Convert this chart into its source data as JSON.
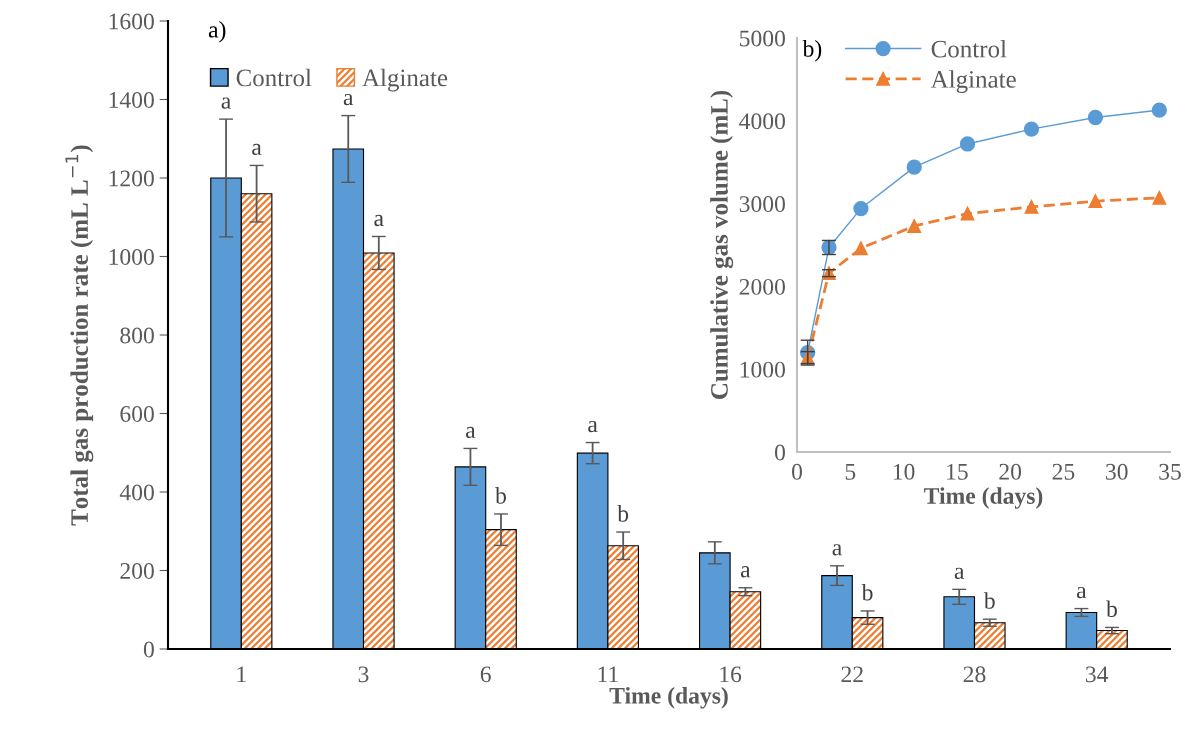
{
  "chart_data": [
    {
      "type": "bar",
      "title": "a)",
      "xlabel": "Time (days)",
      "ylabel": "Total gas production rate (mL L$^{−1}$)",
      "categories": [
        "1",
        "3",
        "6",
        "11",
        "16",
        "22",
        "28",
        "34"
      ],
      "ylim": [
        0,
        1600
      ],
      "yticks": [
        0,
        200,
        400,
        600,
        800,
        1000,
        1200,
        1400,
        1600
      ],
      "grid": false,
      "legend": "top left",
      "series": [
        {
          "name": "Control",
          "color": "#5b9bd5",
          "values": [
            1200,
            1274,
            464,
            499,
            245,
            187,
            133,
            93
          ],
          "errors": [
            150,
            85,
            47,
            27,
            28,
            25,
            19,
            10
          ]
        },
        {
          "name": "Alginate",
          "color": "#ed7d31",
          "values": [
            1160,
            1009,
            304,
            263,
            146,
            80,
            67,
            47
          ],
          "errors": [
            72,
            42,
            40,
            35,
            10,
            17,
            9,
            8
          ]
        }
      ],
      "annotations": [
        {
          "text": "a",
          "x": "1",
          "y": 1200
        },
        {
          "text": "a",
          "x": "1",
          "y": 1160
        },
        {
          "text": "a",
          "x": "3",
          "y": 1274
        },
        {
          "text": "a",
          "x": "3",
          "y": 1009
        },
        {
          "text": "a",
          "x": "6",
          "y": 464
        },
        {
          "text": "b",
          "x": "6",
          "y": 304
        },
        {
          "text": "a",
          "x": "11",
          "y": 499
        },
        {
          "text": "b",
          "x": "11",
          "y": 263
        },
        {
          "text": "a",
          "x": "16",
          "y": 146
        },
        {
          "text": "a",
          "x": "22",
          "y": 187
        },
        {
          "text": "b",
          "x": "22",
          "y": 80
        },
        {
          "text": "a",
          "x": "28",
          "y": 133
        },
        {
          "text": "b",
          "x": "28",
          "y": 67
        },
        {
          "text": "a",
          "x": "34",
          "y": 93
        },
        {
          "text": "b",
          "x": "34",
          "y": 47
        }
      ]
    },
    {
      "type": "line",
      "title": "b)",
      "xlabel": "Time (days)",
      "ylabel": "Cumulative gas volume (mL)",
      "x": [
        1,
        3,
        6,
        11,
        16,
        22,
        28,
        34
      ],
      "xlim": [
        0,
        35
      ],
      "xticks": [
        0,
        5,
        10,
        15,
        20,
        25,
        30,
        35
      ],
      "ylim": [
        0,
        5000
      ],
      "yticks": [
        0,
        1000,
        2000,
        3000,
        4000,
        5000
      ],
      "grid": false,
      "legend": "top left",
      "series": [
        {
          "name": "Control",
          "color": "#5b9bd5",
          "marker": "circle",
          "line_style": "solid",
          "values": [
            1200,
            2470,
            2940,
            3440,
            3720,
            3900,
            4040,
            4130
          ],
          "errors": [
            150,
            85,
            null,
            null,
            null,
            null,
            null,
            null
          ]
        },
        {
          "name": "Alginate",
          "color": "#ed7d31",
          "marker": "triangle",
          "line_style": "dashed",
          "values": [
            1140,
            2160,
            2460,
            2730,
            2880,
            2960,
            3030,
            3070
          ],
          "errors": [
            72,
            42,
            null,
            null,
            null,
            null,
            null,
            null
          ]
        }
      ]
    }
  ]
}
